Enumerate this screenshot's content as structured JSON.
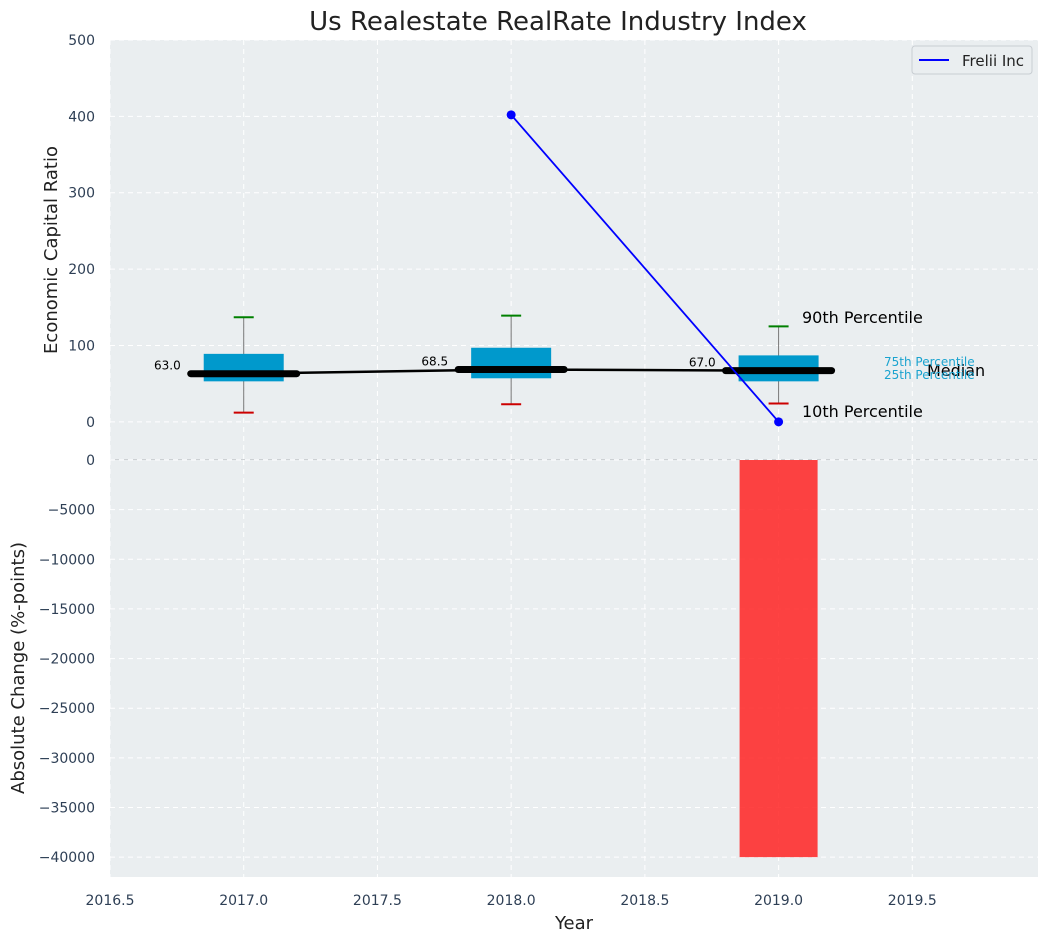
{
  "chart_data": {
    "type": "box",
    "title": "Us Realestate RealRate Industry Index",
    "xlabel": "Year",
    "x_ticks": [
      "2016.5",
      "2017.0",
      "2017.5",
      "2018.0",
      "2018.5",
      "2019.0",
      "2019.5"
    ],
    "xlim": [
      2016.5,
      2019.97
    ],
    "top_panel": {
      "ylabel": "Economic Capital Ratio",
      "ylim": [
        -50,
        500
      ],
      "y_ticks": [
        "0",
        "100",
        "200",
        "300",
        "400",
        "500"
      ],
      "boxes": [
        {
          "x": 2017,
          "p10": 12,
          "p25": 53,
          "median": 63.0,
          "p75": 89,
          "p90": 137,
          "median_label": "63.0"
        },
        {
          "x": 2018,
          "p10": 23,
          "p25": 57,
          "median": 68.5,
          "p75": 97,
          "p90": 139,
          "median_label": "68.5"
        },
        {
          "x": 2019,
          "p10": 24,
          "p25": 53,
          "median": 67.0,
          "p75": 87,
          "p90": 125,
          "median_label": "67.0"
        }
      ],
      "company_series": {
        "name": "Frelii Inc",
        "color": "#0000ff",
        "x": [
          2018,
          2019
        ],
        "y": [
          402,
          0
        ]
      },
      "annotations": {
        "p90": "90th Percentile",
        "p10": "10th Percentile",
        "median": "Median",
        "p75": "75th Percentile",
        "p25": "25th Percentile"
      },
      "colors": {
        "box": "#0099cc",
        "median": "#000000",
        "p90_whisker": "#008000",
        "p10_whisker": "#cc0000"
      }
    },
    "bottom_panel": {
      "ylabel": "Absolute Change (%-points)",
      "ylim": [
        -42000,
        0
      ],
      "y_ticks": [
        "0",
        "−5000",
        "−10000",
        "−15000",
        "−20000",
        "−25000",
        "−30000",
        "−35000",
        "−40000"
      ],
      "bars": [
        {
          "x": 2019,
          "value": -40000,
          "color": "#ff2222"
        }
      ]
    },
    "legend": {
      "position": "top-right",
      "entries": [
        "Frelii Inc"
      ]
    },
    "grid": true,
    "background": "#eaeef0"
  }
}
